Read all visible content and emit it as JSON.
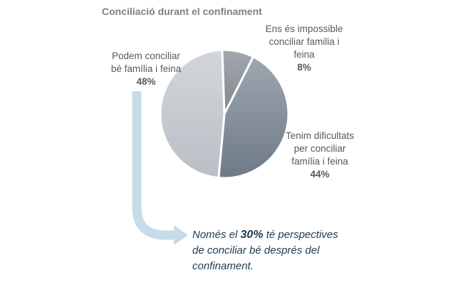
{
  "chart_data": {
    "type": "pie",
    "title": "Conciliació durant el confinament",
    "slices": [
      {
        "label_lines": [
          "Podem conciliar",
          "bé família i feina"
        ],
        "value": 48,
        "value_text": "48%",
        "color": "#c9ced3"
      },
      {
        "label_lines": [
          "Ens és impossible",
          "conciliar familia i",
          "feina"
        ],
        "value": 8,
        "value_text": "8%",
        "color": "#8a9299"
      },
      {
        "label_lines": [
          "Tenim dificultats",
          "per conciliar",
          "família i feina"
        ],
        "value": 44,
        "value_text": "44%",
        "color": "#7d8893"
      }
    ],
    "legend": "none"
  },
  "note": {
    "prefix": "Només el ",
    "highlight": "30%",
    "suffix_line1": " té perspectives",
    "line2": "de conciliar bé després del",
    "line3": "confinament."
  },
  "colors": {
    "arrow": "#c7dbe8",
    "note_text": "#1f3a4d"
  }
}
